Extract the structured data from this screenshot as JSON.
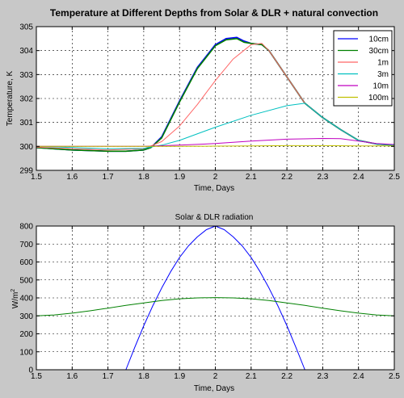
{
  "chart_data": [
    {
      "type": "line",
      "title": "Temperature at Different Depths from Solar & DLR + natural convection",
      "xlabel": "Time, Days",
      "ylabel": "Temperature, K",
      "xlim": [
        1.5,
        2.5
      ],
      "ylim": [
        299,
        305
      ],
      "xticks": [
        1.5,
        1.6,
        1.7,
        1.8,
        1.9,
        2.0,
        2.1,
        2.2,
        2.3,
        2.4,
        2.5
      ],
      "xtick_labels": [
        "1.5",
        "1.6",
        "1.7",
        "1.8",
        "1.9",
        "2",
        "2.1",
        "2.2",
        "2.3",
        "2.4",
        "2.5"
      ],
      "yticks": [
        299,
        300,
        301,
        302,
        303,
        304,
        305
      ],
      "ytick_labels": [
        "299",
        "300",
        "301",
        "302",
        "303",
        "304",
        "305"
      ],
      "grid": true,
      "legend": "top-right",
      "series": [
        {
          "name": "10cm",
          "color": "#0000ff",
          "x": [
            1.5,
            1.6,
            1.7,
            1.75,
            1.8,
            1.82,
            1.85,
            1.9,
            1.95,
            2.0,
            2.03,
            2.06,
            2.08,
            2.1,
            2.13,
            2.15,
            2.2,
            2.25,
            2.3,
            2.35,
            2.4,
            2.45,
            2.5
          ],
          "y": [
            299.95,
            299.85,
            299.8,
            299.8,
            299.85,
            299.95,
            300.4,
            301.9,
            303.3,
            304.25,
            304.5,
            304.55,
            304.4,
            304.3,
            304.25,
            304.0,
            302.9,
            301.8,
            301.2,
            300.7,
            300.25,
            300.1,
            300.05
          ]
        },
        {
          "name": "30cm",
          "color": "#008000",
          "x": [
            1.5,
            1.6,
            1.7,
            1.75,
            1.8,
            1.82,
            1.85,
            1.9,
            1.95,
            2.0,
            2.03,
            2.06,
            2.08,
            2.1,
            2.13,
            2.15,
            2.2,
            2.25,
            2.3,
            2.35,
            2.4,
            2.45,
            2.5
          ],
          "y": [
            299.95,
            299.85,
            299.8,
            299.8,
            299.85,
            299.95,
            300.35,
            301.85,
            303.25,
            304.2,
            304.45,
            304.5,
            304.35,
            304.3,
            304.25,
            304.0,
            302.9,
            301.8,
            301.2,
            300.7,
            300.25,
            300.1,
            300.05
          ]
        },
        {
          "name": "1m",
          "color": "#ff6666",
          "x": [
            1.5,
            1.6,
            1.7,
            1.8,
            1.85,
            1.9,
            1.95,
            2.0,
            2.05,
            2.1,
            2.13,
            2.15,
            2.2,
            2.25,
            2.3,
            2.35,
            2.4,
            2.45,
            2.5
          ],
          "y": [
            299.97,
            299.9,
            299.85,
            299.9,
            300.2,
            300.85,
            301.75,
            302.75,
            303.65,
            304.25,
            304.3,
            304.0,
            302.9,
            301.8,
            301.2,
            300.7,
            300.25,
            300.1,
            300.05
          ]
        },
        {
          "name": "3m",
          "color": "#00c0c0",
          "x": [
            1.5,
            1.6,
            1.7,
            1.8,
            1.85,
            1.9,
            2.0,
            2.1,
            2.2,
            2.25,
            2.3,
            2.35,
            2.4,
            2.45,
            2.5
          ],
          "y": [
            300.0,
            299.95,
            299.9,
            299.92,
            300.05,
            300.25,
            300.8,
            301.3,
            301.7,
            301.8,
            301.2,
            300.7,
            300.25,
            300.1,
            300.05
          ]
        },
        {
          "name": "10m",
          "color": "#c000c0",
          "x": [
            1.5,
            1.6,
            1.7,
            1.8,
            1.9,
            2.0,
            2.1,
            2.2,
            2.3,
            2.35,
            2.4,
            2.45,
            2.5
          ],
          "y": [
            300.0,
            300.0,
            300.0,
            300.0,
            300.05,
            300.12,
            300.22,
            300.3,
            300.33,
            300.32,
            300.22,
            300.12,
            300.08
          ]
        },
        {
          "name": "100m",
          "color": "#c0c000",
          "x": [
            1.5,
            1.6,
            1.7,
            1.8,
            1.9,
            2.0,
            2.1,
            2.2,
            2.3,
            2.4,
            2.5
          ],
          "y": [
            300.0,
            300.0,
            300.0,
            300.0,
            300.0,
            300.01,
            300.02,
            300.03,
            300.03,
            300.02,
            300.02
          ]
        }
      ]
    },
    {
      "type": "line",
      "title": "Solar & DLR radiation",
      "xlabel": "Time, Days",
      "ylabel": "W/m",
      "ylabel_sup": "2",
      "xlim": [
        1.5,
        2.5
      ],
      "ylim": [
        0,
        800
      ],
      "xticks": [
        1.5,
        1.6,
        1.7,
        1.8,
        1.9,
        2.0,
        2.1,
        2.2,
        2.3,
        2.4,
        2.5
      ],
      "xtick_labels": [
        "1.5",
        "1.6",
        "1.7",
        "1.8",
        "1.9",
        "2",
        "2.1",
        "2.2",
        "2.3",
        "2.4",
        "2.5"
      ],
      "yticks": [
        0,
        100,
        200,
        300,
        400,
        500,
        600,
        700,
        800
      ],
      "ytick_labels": [
        "0",
        "100",
        "200",
        "300",
        "400",
        "500",
        "600",
        "700",
        "800"
      ],
      "grid": true,
      "series": [
        {
          "color": "#0000ff",
          "x": [
            1.5,
            1.75,
            1.775,
            1.8,
            1.825,
            1.85,
            1.875,
            1.9,
            1.925,
            1.95,
            1.975,
            2.0,
            2.025,
            2.05,
            2.075,
            2.1,
            2.125,
            2.15,
            2.175,
            2.2,
            2.225,
            2.25,
            2.5
          ],
          "y": [
            0,
            0,
            125,
            245,
            355,
            455,
            545,
            625,
            690,
            740,
            780,
            800,
            780,
            740,
            690,
            625,
            545,
            455,
            355,
            245,
            125,
            0,
            0
          ]
        },
        {
          "color": "#008000",
          "x": [
            1.5,
            1.55,
            1.6,
            1.65,
            1.7,
            1.75,
            1.8,
            1.85,
            1.9,
            1.95,
            2.0,
            2.05,
            2.1,
            2.15,
            2.2,
            2.25,
            2.3,
            2.35,
            2.4,
            2.45,
            2.5
          ],
          "y": [
            300,
            305,
            315,
            328,
            343,
            358,
            372,
            385,
            395,
            400,
            402,
            400,
            395,
            385,
            372,
            358,
            343,
            328,
            315,
            305,
            300
          ]
        }
      ]
    }
  ]
}
